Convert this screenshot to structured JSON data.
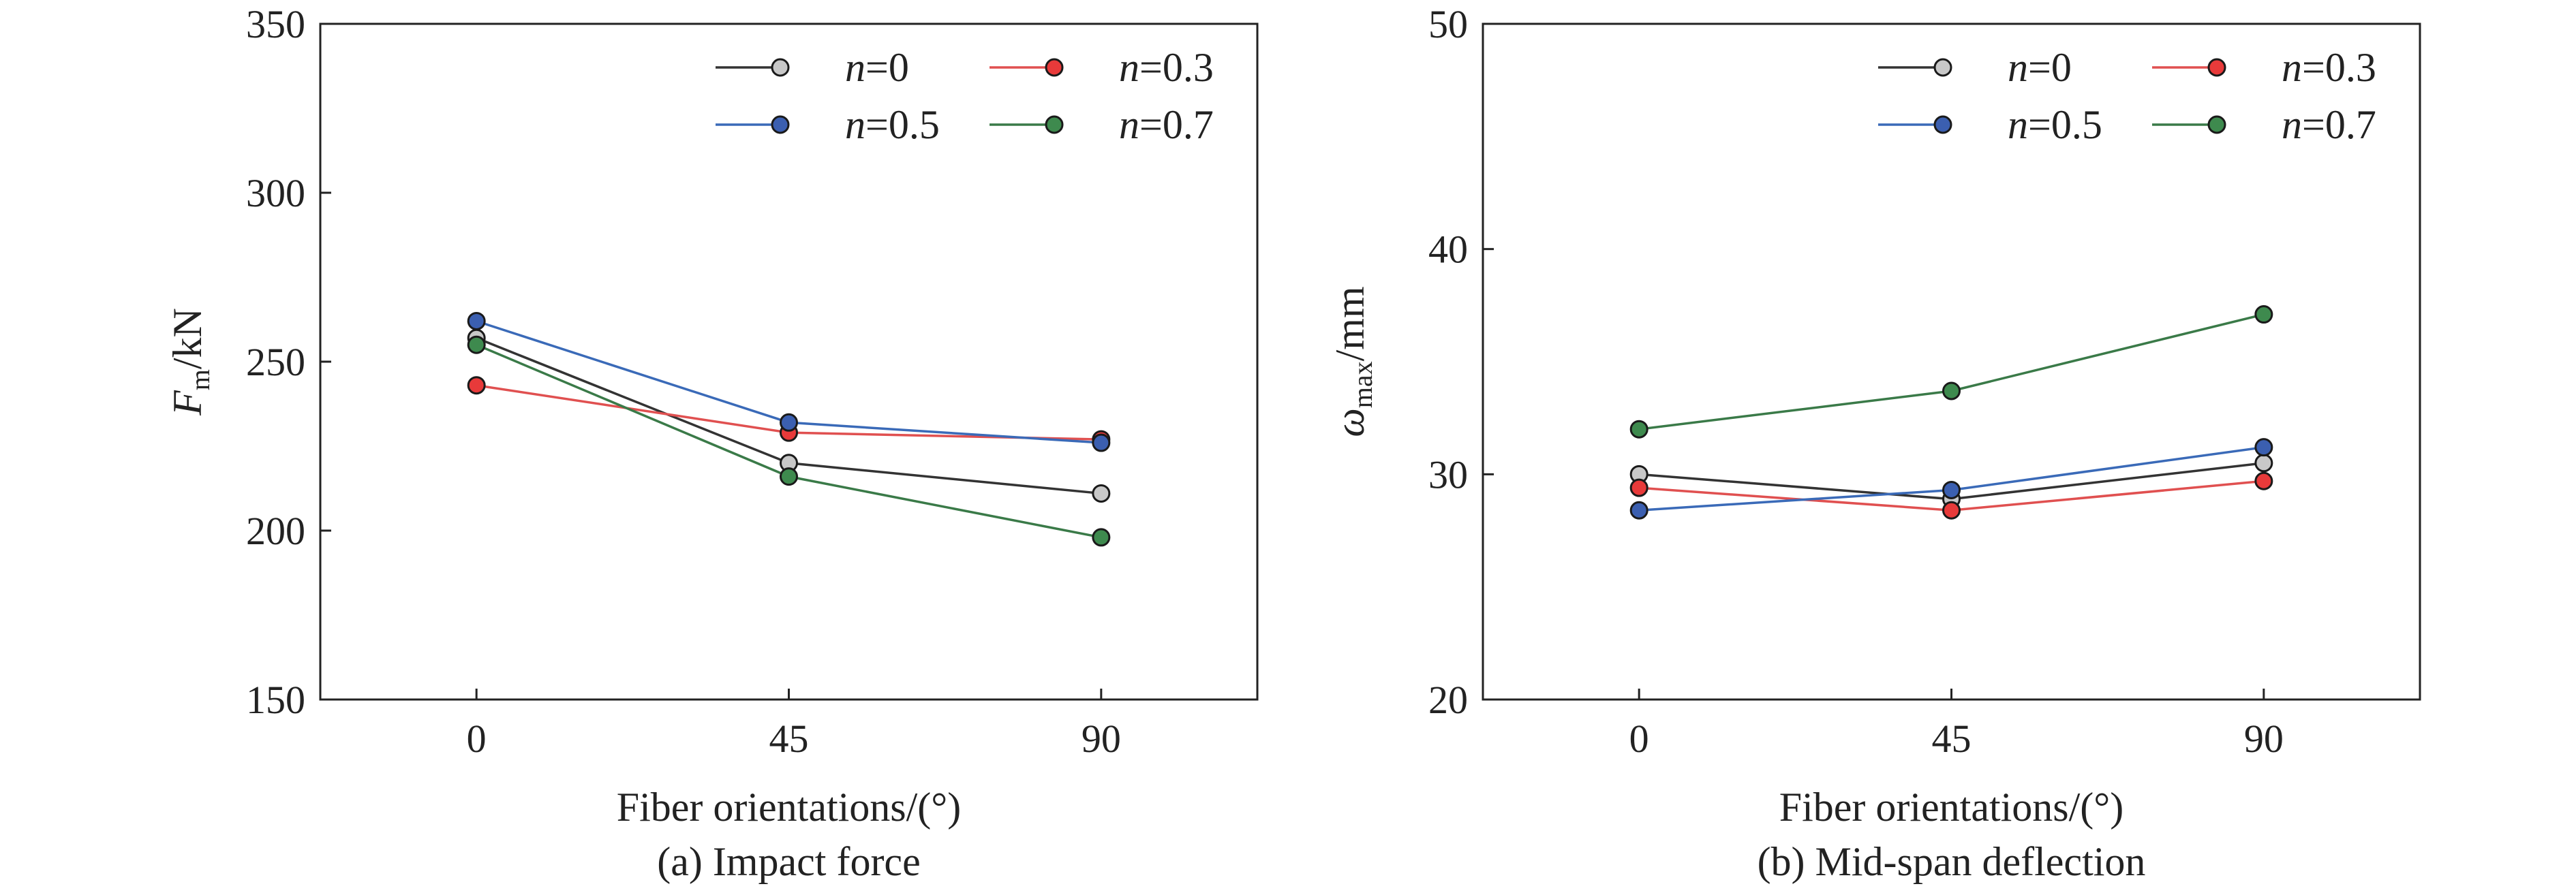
{
  "chart_data": [
    {
      "type": "line",
      "caption": "(a) Impact force",
      "xlabel": "Fiber orientations/(°)",
      "ylabel": {
        "main": "F",
        "sub": "m",
        "unit": "/kN"
      },
      "x": [
        0,
        45,
        90
      ],
      "xticks": [
        "0",
        "45",
        "90"
      ],
      "xlim": [
        -22.5,
        112.5
      ],
      "ylim": [
        150,
        350
      ],
      "yticks": [
        "150",
        "200",
        "250",
        "300",
        "350"
      ],
      "grid": false,
      "legend_position": "top-right",
      "series": [
        {
          "name": "n=0",
          "var": "n",
          "val": "=0",
          "values": [
            257,
            220,
            211
          ],
          "color": "#333333",
          "marker_fill": "#c8c8c8"
        },
        {
          "name": "n=0.3",
          "var": "n",
          "val": "=0.3",
          "values": [
            243,
            229,
            227
          ],
          "color": "#e05050",
          "marker_fill": "#e83a3a"
        },
        {
          "name": "n=0.5",
          "var": "n",
          "val": "=0.5",
          "values": [
            262,
            232,
            226
          ],
          "color": "#3a6ab8",
          "marker_fill": "#3b5fb0"
        },
        {
          "name": "n=0.7",
          "var": "n",
          "val": "=0.7",
          "values": [
            255,
            216,
            198
          ],
          "color": "#3a7a48",
          "marker_fill": "#3e8a4e"
        }
      ]
    },
    {
      "type": "line",
      "caption": "(b) Mid-span deflection",
      "xlabel": "Fiber orientations/(°)",
      "ylabel": {
        "main": "ω",
        "sub": "max",
        "unit": "/mm"
      },
      "x": [
        0,
        45,
        90
      ],
      "xticks": [
        "0",
        "45",
        "90"
      ],
      "xlim": [
        -22.5,
        112.5
      ],
      "ylim": [
        20,
        50
      ],
      "yticks": [
        "20",
        "30",
        "40",
        "50"
      ],
      "grid": false,
      "legend_position": "top-right",
      "series": [
        {
          "name": "n=0",
          "var": "n",
          "val": "=0",
          "values": [
            30.0,
            28.9,
            30.5
          ],
          "color": "#333333",
          "marker_fill": "#c8c8c8"
        },
        {
          "name": "n=0.3",
          "var": "n",
          "val": "=0.3",
          "values": [
            29.4,
            28.4,
            29.7
          ],
          "color": "#e05050",
          "marker_fill": "#e83a3a"
        },
        {
          "name": "n=0.5",
          "var": "n",
          "val": "=0.5",
          "values": [
            28.4,
            29.3,
            31.2
          ],
          "color": "#3a6ab8",
          "marker_fill": "#3b5fb0"
        },
        {
          "name": "n=0.7",
          "var": "n",
          "val": "=0.7",
          "values": [
            32.0,
            33.7,
            37.1
          ],
          "color": "#3a7a48",
          "marker_fill": "#3e8a4e"
        }
      ]
    }
  ]
}
